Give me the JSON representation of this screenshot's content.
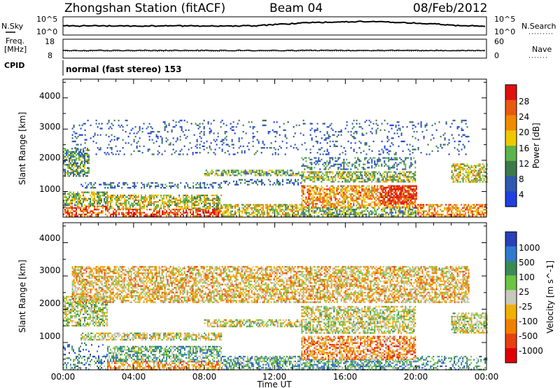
{
  "header": {
    "title": "Zhongshan Station (fitACF)",
    "beam": "Beam 04",
    "date": "08/Feb/2012"
  },
  "strips": {
    "nsky_label": "N.Sky",
    "nsky_ticks": [
      "10^5",
      "10^0"
    ],
    "nsearch_label": "N.Search",
    "nsearch_ticks": [
      "10^5",
      "10^0"
    ],
    "freq_label_line1": "Freq.",
    "freq_label_line2": "[MHz]",
    "freq_ticks": [
      "18",
      "8"
    ],
    "nave_label": "Nave",
    "nave_ticks": [
      "60",
      "0"
    ],
    "cpid_label": "CPID",
    "cpid_text": "normal (fast stereo) 153"
  },
  "colors": {
    "power_scale": [
      "#1f3fe0",
      "#2f58b0",
      "#3c7a4a",
      "#5cb44a",
      "#f0c800",
      "#f08a00",
      "#e85a10",
      "#e01010"
    ],
    "velocity_scale": [
      "#2840b8",
      "#2f7ad0",
      "#3a8a58",
      "#6cc440",
      "#c8c8bc",
      "#f0b000",
      "#f08000",
      "#e84010",
      "#e00000"
    ]
  },
  "chart_data": [
    {
      "type": "heatmap",
      "name": "power",
      "xlabel": "",
      "ylabel": "Slant Range [km]",
      "x_ticks": [
        "00:00",
        "04:00",
        "08:00",
        "12:00",
        "16:00",
        "20:00",
        "00:00"
      ],
      "y_ticks": [
        1000,
        2000,
        3000,
        4000
      ],
      "xlim_hours": [
        0,
        24
      ],
      "ylim_km": [
        180,
        4600
      ],
      "colorbar": {
        "label": "Power [dB]",
        "ticks": [
          4,
          8,
          12,
          16,
          20,
          24,
          28
        ],
        "range": [
          0,
          30
        ]
      },
      "regions": [
        {
          "t0": 0.0,
          "t1": 2.5,
          "r0": 200,
          "r1": 550,
          "level": 0.8
        },
        {
          "t0": 0.0,
          "t1": 2.5,
          "r0": 550,
          "r1": 1000,
          "level": 0.45
        },
        {
          "t0": 0.0,
          "t1": 1.5,
          "r0": 1500,
          "r1": 2400,
          "level": 0.35
        },
        {
          "t0": 2.5,
          "t1": 9.0,
          "r0": 200,
          "r1": 450,
          "level": 0.85
        },
        {
          "t0": 2.5,
          "t1": 9.0,
          "r0": 450,
          "r1": 900,
          "level": 0.5
        },
        {
          "t0": 1.0,
          "t1": 9.0,
          "r0": 1100,
          "r1": 1300,
          "level": 0.2
        },
        {
          "t0": 9.0,
          "t1": 13.5,
          "r0": 200,
          "r1": 600,
          "level": 0.55
        },
        {
          "t0": 9.0,
          "t1": 13.5,
          "r0": 1200,
          "r1": 1400,
          "level": 0.2
        },
        {
          "t0": 8.0,
          "t1": 13.5,
          "r0": 1500,
          "r1": 1700,
          "level": 0.4
        },
        {
          "t0": 13.5,
          "t1": 20.0,
          "r0": 200,
          "r1": 500,
          "level": 0.4
        },
        {
          "t0": 13.5,
          "t1": 20.0,
          "r0": 500,
          "r1": 1200,
          "level": 0.7
        },
        {
          "t0": 13.5,
          "t1": 20.0,
          "r0": 1300,
          "r1": 1650,
          "level": 0.45
        },
        {
          "t0": 13.5,
          "t1": 20.0,
          "r0": 1700,
          "r1": 2100,
          "level": 0.25
        },
        {
          "t0": 18.0,
          "t1": 20.0,
          "r0": 600,
          "r1": 1200,
          "level": 0.95
        },
        {
          "t0": 20.0,
          "t1": 24.0,
          "r0": 200,
          "r1": 600,
          "level": 0.7
        },
        {
          "t0": 22.0,
          "t1": 24.0,
          "r0": 1300,
          "r1": 1900,
          "level": 0.55
        },
        {
          "t0": 0.5,
          "t1": 23.0,
          "r0": 2200,
          "r1": 3300,
          "level": 0.15
        }
      ]
    },
    {
      "type": "heatmap",
      "name": "velocity",
      "xlabel": "Time UT",
      "ylabel": "Slant Range [km]",
      "x_ticks": [
        "00:00",
        "04:00",
        "08:00",
        "12:00",
        "16:00",
        "20:00",
        "00:00"
      ],
      "y_ticks": [
        1000,
        2000,
        3000,
        4000
      ],
      "xlim_hours": [
        0,
        24
      ],
      "ylim_km": [
        180,
        4600
      ],
      "colorbar": {
        "label": "Velocity [m s^-1]",
        "ticks": [
          "1000",
          "500",
          "100",
          "25",
          "-25",
          "-100",
          "-500",
          "-1000"
        ]
      },
      "regions": [
        {
          "t0": 0.0,
          "t1": 2.5,
          "r0": 200,
          "r1": 600,
          "level": 0.25
        },
        {
          "t0": 0.0,
          "t1": 2.5,
          "r0": 600,
          "r1": 1000,
          "level": 0.15
        },
        {
          "t0": 0.0,
          "t1": 2.5,
          "r0": 1500,
          "r1": 2400,
          "level": 0.45
        },
        {
          "t0": 2.5,
          "t1": 9.0,
          "r0": 200,
          "r1": 450,
          "level": 0.65
        },
        {
          "t0": 2.5,
          "t1": 9.0,
          "r0": 450,
          "r1": 900,
          "level": 0.35
        },
        {
          "t0": 1.0,
          "t1": 9.0,
          "r0": 1100,
          "r1": 1300,
          "level": 0.5
        },
        {
          "t0": 9.0,
          "t1": 13.5,
          "r0": 200,
          "r1": 600,
          "level": 0.3
        },
        {
          "t0": 8.0,
          "t1": 13.5,
          "r0": 1500,
          "r1": 1700,
          "level": 0.5
        },
        {
          "t0": 13.5,
          "t1": 20.0,
          "r0": 200,
          "r1": 500,
          "level": 0.3
        },
        {
          "t0": 13.5,
          "t1": 20.0,
          "r0": 500,
          "r1": 1200,
          "level": 0.7
        },
        {
          "t0": 13.5,
          "t1": 20.0,
          "r0": 1300,
          "r1": 1650,
          "level": 0.5
        },
        {
          "t0": 13.5,
          "t1": 20.0,
          "r0": 1700,
          "r1": 2100,
          "level": 0.5
        },
        {
          "t0": 20.0,
          "t1": 24.0,
          "r0": 200,
          "r1": 600,
          "level": 0.25
        },
        {
          "t0": 22.0,
          "t1": 24.0,
          "r0": 1300,
          "r1": 1900,
          "level": 0.5
        },
        {
          "t0": 0.5,
          "t1": 23.0,
          "r0": 2200,
          "r1": 3300,
          "level": 0.6
        }
      ]
    }
  ]
}
